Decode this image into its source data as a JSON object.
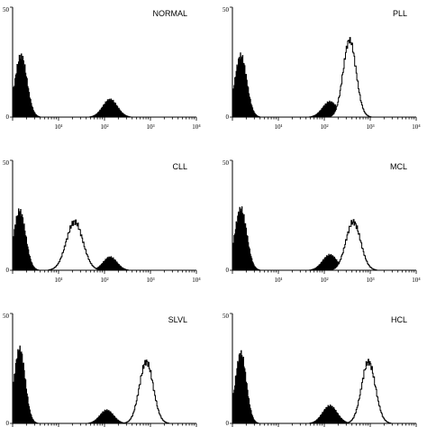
{
  "chart_data": {
    "type": "area",
    "description_kind": "flow-cytometry-histograms",
    "x_scale": "log",
    "xlim": [
      1,
      10000
    ],
    "ylim": [
      0,
      50
    ],
    "y_tick_labels": [
      "0",
      "50"
    ],
    "x_tick_labels": [
      "0",
      "10¹",
      "10²",
      "10³",
      "10⁴"
    ],
    "colors": {
      "control_fill": "#000000",
      "test_fill": "#ffffff",
      "stroke": "#000000"
    },
    "panels": [
      {
        "title": "NORMAL",
        "x_tick_labels_visible": true,
        "series": [
          {
            "role": "control",
            "peaks": [
              {
                "center": 1.5,
                "height": 28,
                "width": 0.13
              }
            ]
          },
          {
            "role": "control-small",
            "peaks": [
              {
                "center": 130,
                "height": 8,
                "width": 0.16
              }
            ]
          }
        ]
      },
      {
        "title": "PLL",
        "x_tick_labels_visible": true,
        "series": [
          {
            "role": "control",
            "peaks": [
              {
                "center": 1.5,
                "height": 28,
                "width": 0.13
              },
              {
                "center": 130,
                "height": 7,
                "width": 0.16
              }
            ]
          },
          {
            "role": "test",
            "peaks": [
              {
                "center": 350,
                "height": 35,
                "width": 0.14
              }
            ]
          }
        ]
      },
      {
        "title": "CLL",
        "x_tick_labels_visible": true,
        "series": [
          {
            "role": "control",
            "peaks": [
              {
                "center": 1.4,
                "height": 27,
                "width": 0.13
              },
              {
                "center": 130,
                "height": 6,
                "width": 0.15
              }
            ]
          },
          {
            "role": "test",
            "peaks": [
              {
                "center": 22,
                "height": 22,
                "width": 0.18
              }
            ]
          }
        ]
      },
      {
        "title": "MCL",
        "x_tick_labels_visible": true,
        "series": [
          {
            "role": "control",
            "peaks": [
              {
                "center": 1.5,
                "height": 28,
                "width": 0.13
              },
              {
                "center": 130,
                "height": 7,
                "width": 0.16
              }
            ]
          },
          {
            "role": "test",
            "peaks": [
              {
                "center": 420,
                "height": 22,
                "width": 0.16
              }
            ]
          }
        ]
      },
      {
        "title": "SLVL",
        "x_tick_labels_visible": false,
        "series": [
          {
            "role": "control",
            "peaks": [
              {
                "center": 1.4,
                "height": 34,
                "width": 0.12
              },
              {
                "center": 110,
                "height": 6,
                "width": 0.15
              }
            ]
          },
          {
            "role": "test",
            "peaks": [
              {
                "center": 800,
                "height": 28,
                "width": 0.15
              }
            ]
          }
        ]
      },
      {
        "title": "HCL",
        "x_tick_labels_visible": false,
        "series": [
          {
            "role": "control",
            "peaks": [
              {
                "center": 1.5,
                "height": 32,
                "width": 0.12
              },
              {
                "center": 130,
                "height": 8,
                "width": 0.16
              }
            ]
          },
          {
            "role": "test",
            "peaks": [
              {
                "center": 900,
                "height": 28,
                "width": 0.15
              }
            ]
          }
        ]
      }
    ]
  }
}
